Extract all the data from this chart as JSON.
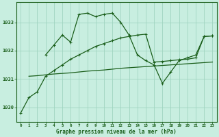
{
  "xlabel_label": "Graphe pression niveau de la mer (hPa)",
  "x_ticks": [
    0,
    1,
    2,
    3,
    4,
    5,
    6,
    7,
    8,
    9,
    10,
    11,
    12,
    13,
    14,
    15,
    16,
    17,
    18,
    19,
    20,
    21,
    22,
    23
  ],
  "ylim": [
    1029.5,
    1033.7
  ],
  "yticks": [
    1030,
    1031,
    1032,
    1033
  ],
  "bg_color": "#c8eee0",
  "grid_color": "#a0d4c0",
  "line_color": "#1a5e1a",
  "line1_x": [
    0,
    1,
    2,
    3,
    4,
    5,
    6,
    7,
    8,
    9,
    10,
    11,
    12,
    13,
    14,
    15,
    16,
    17,
    18,
    19,
    20,
    21,
    22,
    23
  ],
  "line1_y": [
    1029.8,
    1030.35,
    1030.55,
    1031.1,
    1031.3,
    1031.5,
    1031.7,
    1031.85,
    1032.0,
    1032.15,
    1032.25,
    1032.35,
    1032.45,
    1032.5,
    1032.55,
    1032.58,
    1031.6,
    1031.62,
    1031.65,
    1031.68,
    1031.7,
    1031.75,
    1032.5,
    1032.52
  ],
  "line2_x": [
    3,
    4,
    5,
    6,
    7,
    8,
    9,
    10,
    11,
    12,
    13,
    14,
    15,
    16,
    17,
    18,
    19,
    20,
    21,
    22,
    23
  ],
  "line2_y": [
    1031.85,
    1032.2,
    1032.55,
    1032.3,
    1033.28,
    1033.32,
    1033.2,
    1033.28,
    1033.32,
    1033.0,
    1032.55,
    1031.85,
    1031.65,
    1031.5,
    1030.85,
    1031.25,
    1031.65,
    1031.75,
    1031.85,
    1032.5,
    1032.52
  ],
  "line3_x": [
    1,
    2,
    3,
    4,
    5,
    6,
    7,
    8,
    9,
    10,
    11,
    12,
    13,
    14,
    15,
    16,
    17,
    18,
    19,
    20,
    21,
    22,
    23
  ],
  "line3_y": [
    1031.1,
    1031.12,
    1031.15,
    1031.18,
    1031.2,
    1031.22,
    1031.25,
    1031.28,
    1031.3,
    1031.32,
    1031.35,
    1031.38,
    1031.4,
    1031.42,
    1031.44,
    1031.46,
    1031.48,
    1031.5,
    1031.52,
    1031.54,
    1031.56,
    1031.58,
    1031.6
  ]
}
